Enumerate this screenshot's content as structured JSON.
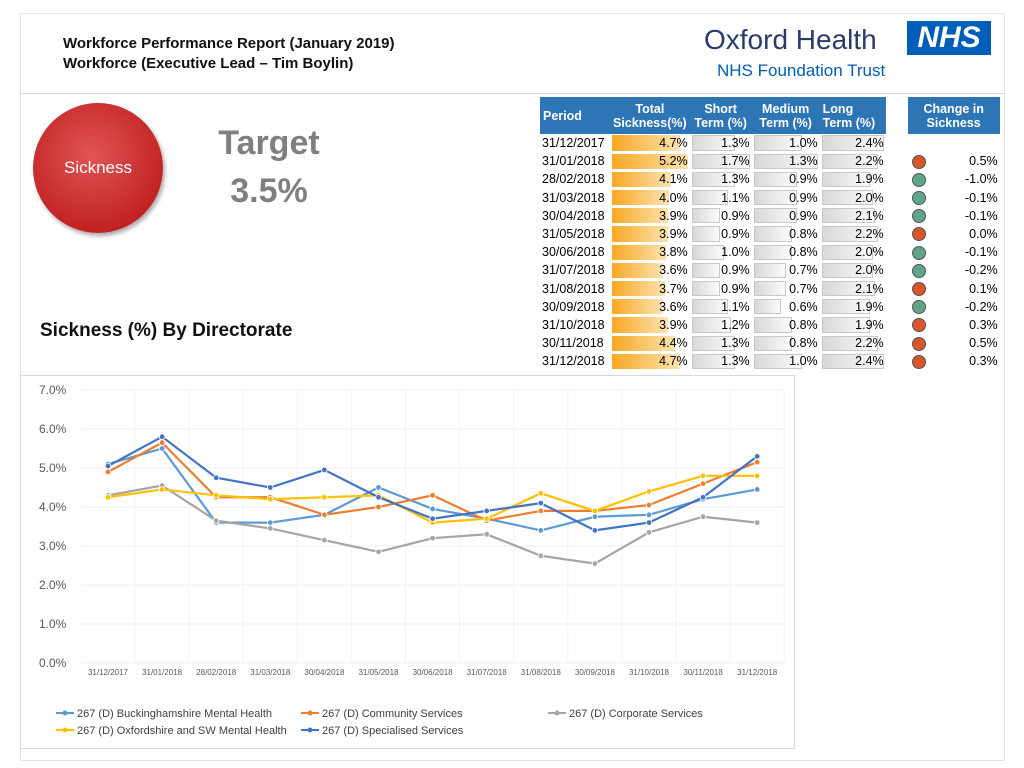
{
  "header": {
    "title_line1": "Workforce Performance Report (January 2019)",
    "title_line2": "Workforce (Executive Lead – Tim Boylin)",
    "logo_name": "Oxford Health",
    "logo_badge": "NHS",
    "logo_sub": "NHS Foundation Trust"
  },
  "kpi": {
    "label": "Sickness",
    "target_label": "Target",
    "target_value": "3.5%",
    "color": "#c82a2a"
  },
  "section_title": "Sickness (%) By Directorate",
  "table": {
    "headers": {
      "period": "Period",
      "total": "Total Sickness(%)",
      "short": "Short Term (%)",
      "medium": "Medium Term (%)",
      "long": "Long Term (%)",
      "change": "Change in Sickness"
    },
    "header_color": "#2e75b6",
    "rows": [
      {
        "period": "31/12/2017",
        "total": "4.7%",
        "short": "1.3%",
        "medium": "1.0%",
        "long": "2.4%",
        "change": "",
        "status": ""
      },
      {
        "period": "31/01/2018",
        "total": "5.2%",
        "short": "1.7%",
        "medium": "1.3%",
        "long": "2.2%",
        "change": "0.5%",
        "status": "red"
      },
      {
        "period": "28/02/2018",
        "total": "4.1%",
        "short": "1.3%",
        "medium": "0.9%",
        "long": "1.9%",
        "change": "-1.0%",
        "status": "green"
      },
      {
        "period": "31/03/2018",
        "total": "4.0%",
        "short": "1.1%",
        "medium": "0.9%",
        "long": "2.0%",
        "change": "-0.1%",
        "status": "green"
      },
      {
        "period": "30/04/2018",
        "total": "3.9%",
        "short": "0.9%",
        "medium": "0.9%",
        "long": "2.1%",
        "change": "-0.1%",
        "status": "green"
      },
      {
        "period": "31/05/2018",
        "total": "3.9%",
        "short": "0.9%",
        "medium": "0.8%",
        "long": "2.2%",
        "change": "0.0%",
        "status": "red"
      },
      {
        "period": "30/06/2018",
        "total": "3.8%",
        "short": "1.0%",
        "medium": "0.8%",
        "long": "2.0%",
        "change": "-0.1%",
        "status": "green"
      },
      {
        "period": "31/07/2018",
        "total": "3.6%",
        "short": "0.9%",
        "medium": "0.7%",
        "long": "2.0%",
        "change": "-0.2%",
        "status": "green"
      },
      {
        "period": "31/08/2018",
        "total": "3.7%",
        "short": "0.9%",
        "medium": "0.7%",
        "long": "2.1%",
        "change": "0.1%",
        "status": "red"
      },
      {
        "period": "30/09/2018",
        "total": "3.6%",
        "short": "1.1%",
        "medium": "0.6%",
        "long": "1.9%",
        "change": "-0.2%",
        "status": "green"
      },
      {
        "period": "31/10/2018",
        "total": "3.9%",
        "short": "1.2%",
        "medium": "0.8%",
        "long": "1.9%",
        "change": "0.3%",
        "status": "red"
      },
      {
        "period": "30/11/2018",
        "total": "4.4%",
        "short": "1.3%",
        "medium": "0.8%",
        "long": "2.2%",
        "change": "0.5%",
        "status": "red"
      },
      {
        "period": "31/12/2018",
        "total": "4.7%",
        "short": "1.3%",
        "medium": "1.0%",
        "long": "2.4%",
        "change": "0.3%",
        "status": "red"
      }
    ],
    "status_colors": {
      "red": "#d9552b",
      "green": "#5fa58a"
    }
  },
  "chart_data": {
    "type": "line",
    "categories": [
      "31/12/2017",
      "31/01/2018",
      "28/02/2018",
      "31/03/2018",
      "30/04/2018",
      "31/05/2018",
      "30/06/2018",
      "31/07/2018",
      "31/08/2018",
      "30/09/2018",
      "31/10/2018",
      "30/11/2018",
      "31/12/2018"
    ],
    "ylim": [
      0,
      7
    ],
    "yticks": [
      "0.0%",
      "1.0%",
      "2.0%",
      "3.0%",
      "4.0%",
      "5.0%",
      "6.0%",
      "7.0%"
    ],
    "grid": true,
    "legend": "bottom",
    "series": [
      {
        "name": "267 (D) Buckinghamshire Mental Health",
        "color": "#5b9bd5",
        "values": [
          5.1,
          5.5,
          3.6,
          3.6,
          3.8,
          4.5,
          3.95,
          3.7,
          3.4,
          3.75,
          3.8,
          4.2,
          4.45
        ]
      },
      {
        "name": "267 (D) Community Services",
        "color": "#ed7d31",
        "values": [
          4.9,
          5.65,
          4.25,
          4.25,
          3.8,
          4.0,
          4.3,
          3.65,
          3.9,
          3.9,
          4.05,
          4.6,
          5.15
        ]
      },
      {
        "name": "267 (D) Corporate Services",
        "color": "#a5a5a5",
        "values": [
          4.3,
          4.55,
          3.65,
          3.45,
          3.15,
          2.85,
          3.2,
          3.3,
          2.75,
          2.55,
          3.35,
          3.75,
          3.6
        ]
      },
      {
        "name": "267 (D) Oxfordshire and SW Mental Health",
        "color": "#ffc000",
        "values": [
          4.25,
          4.45,
          4.3,
          4.2,
          4.25,
          4.3,
          3.6,
          3.7,
          4.35,
          3.9,
          4.4,
          4.8,
          4.8
        ]
      },
      {
        "name": "267 (D) Specialised Services",
        "color": "#4472c4",
        "values": [
          5.05,
          5.8,
          4.75,
          4.5,
          4.95,
          4.25,
          3.7,
          3.9,
          4.1,
          3.4,
          3.6,
          4.25,
          5.3
        ]
      }
    ]
  }
}
